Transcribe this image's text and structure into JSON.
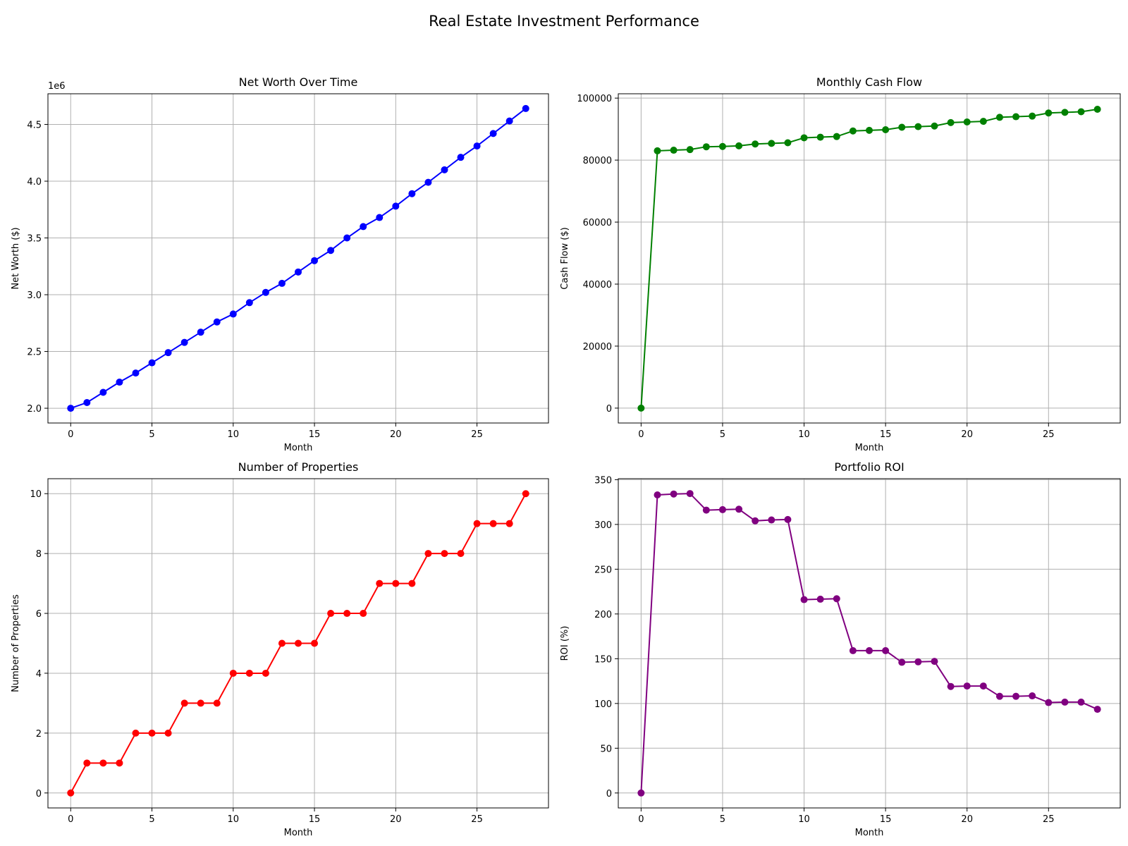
{
  "figure": {
    "title": "Real Estate Investment Performance"
  },
  "chart_data": [
    {
      "type": "line",
      "title": "Net Worth Over Time",
      "xlabel": "Month",
      "ylabel": "Net Worth ($)",
      "offset_text": "1e6",
      "color": "#0000ff",
      "xlim": [
        -1.4,
        29.4
      ],
      "ylim": [
        1.87,
        4.77
      ],
      "xticks": [
        0,
        5,
        10,
        15,
        20,
        25
      ],
      "yticks": [
        2.0,
        2.5,
        3.0,
        3.5,
        4.0,
        4.5
      ],
      "ytick_labels": [
        "2.0",
        "2.5",
        "3.0",
        "3.5",
        "4.0",
        "4.5"
      ],
      "grid": true,
      "x": [
        0,
        1,
        2,
        3,
        4,
        5,
        6,
        7,
        8,
        9,
        10,
        11,
        12,
        13,
        14,
        15,
        16,
        17,
        18,
        19,
        20,
        21,
        22,
        23,
        24,
        25,
        26,
        27,
        28
      ],
      "y": [
        2.0,
        2.05,
        2.14,
        2.23,
        2.31,
        2.4,
        2.49,
        2.58,
        2.67,
        2.76,
        2.83,
        2.93,
        3.02,
        3.1,
        3.2,
        3.3,
        3.39,
        3.5,
        3.6,
        3.68,
        3.78,
        3.89,
        3.99,
        4.1,
        4.21,
        4.31,
        4.42,
        4.53,
        4.64
      ]
    },
    {
      "type": "line",
      "title": "Monthly Cash Flow",
      "xlabel": "Month",
      "ylabel": "Cash Flow ($)",
      "color": "#008000",
      "xlim": [
        -1.4,
        29.4
      ],
      "ylim": [
        -4800,
        101400
      ],
      "xticks": [
        0,
        5,
        10,
        15,
        20,
        25
      ],
      "yticks": [
        0,
        20000,
        40000,
        60000,
        80000,
        100000
      ],
      "ytick_labels": [
        "0",
        "20000",
        "40000",
        "60000",
        "80000",
        "100000"
      ],
      "grid": true,
      "x": [
        0,
        1,
        2,
        3,
        4,
        5,
        6,
        7,
        8,
        9,
        10,
        11,
        12,
        13,
        14,
        15,
        16,
        17,
        18,
        19,
        20,
        21,
        22,
        23,
        24,
        25,
        26,
        27,
        28
      ],
      "y": [
        0,
        83000,
        83200,
        83400,
        84300,
        84400,
        84600,
        85200,
        85400,
        85600,
        87200,
        87400,
        87600,
        89400,
        89600,
        89800,
        90600,
        90800,
        91000,
        92100,
        92300,
        92500,
        93800,
        94000,
        94200,
        95200,
        95400,
        95600,
        96400
      ]
    },
    {
      "type": "line",
      "title": "Number of Properties",
      "xlabel": "Month",
      "ylabel": "Number of Properties",
      "color": "#ff0000",
      "xlim": [
        -1.4,
        29.4
      ],
      "ylim": [
        -0.5,
        10.5
      ],
      "xticks": [
        0,
        5,
        10,
        15,
        20,
        25
      ],
      "yticks": [
        0,
        2,
        4,
        6,
        8,
        10
      ],
      "ytick_labels": [
        "0",
        "2",
        "4",
        "6",
        "8",
        "10"
      ],
      "grid": true,
      "x": [
        0,
        1,
        2,
        3,
        4,
        5,
        6,
        7,
        8,
        9,
        10,
        11,
        12,
        13,
        14,
        15,
        16,
        17,
        18,
        19,
        20,
        21,
        22,
        23,
        24,
        25,
        26,
        27,
        28
      ],
      "y": [
        0,
        1,
        1,
        1,
        2,
        2,
        2,
        3,
        3,
        3,
        4,
        4,
        4,
        5,
        5,
        5,
        6,
        6,
        6,
        7,
        7,
        7,
        8,
        8,
        8,
        9,
        9,
        9,
        10
      ]
    },
    {
      "type": "line",
      "title": "Portfolio ROI",
      "xlabel": "Month",
      "ylabel": "ROI (%)",
      "color": "#800080",
      "xlim": [
        -1.4,
        29.4
      ],
      "ylim": [
        -16.7,
        351.1
      ],
      "xticks": [
        0,
        5,
        10,
        15,
        20,
        25
      ],
      "yticks": [
        0,
        50,
        100,
        150,
        200,
        250,
        300,
        350
      ],
      "ytick_labels": [
        "0",
        "50",
        "100",
        "150",
        "200",
        "250",
        "300",
        "350"
      ],
      "grid": true,
      "x": [
        0,
        1,
        2,
        3,
        4,
        5,
        6,
        7,
        8,
        9,
        10,
        11,
        12,
        13,
        14,
        15,
        16,
        17,
        18,
        19,
        20,
        21,
        22,
        23,
        24,
        25,
        26,
        27,
        28
      ],
      "y": [
        0,
        333,
        334,
        334.5,
        316,
        316.5,
        317,
        304,
        305,
        305.5,
        216,
        216.5,
        217,
        159,
        159,
        159,
        146,
        146.5,
        147,
        119,
        119.5,
        119.5,
        108,
        108,
        108.5,
        101,
        101.5,
        101.5,
        93.5
      ]
    }
  ]
}
